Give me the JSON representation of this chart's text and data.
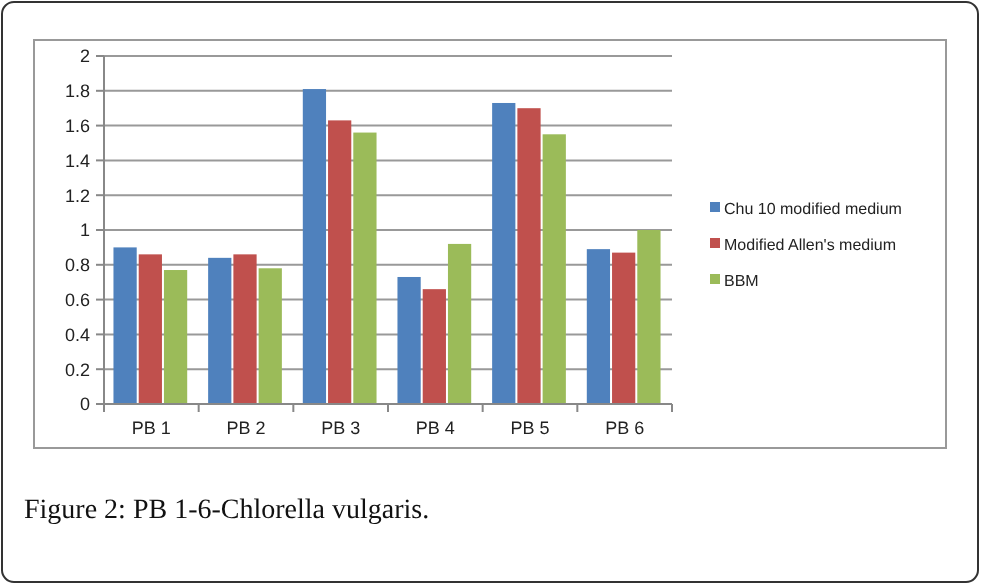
{
  "chart_data": {
    "type": "bar",
    "categories": [
      "PB 1",
      "PB 2",
      "PB 3",
      "PB 4",
      "PB 5",
      "PB 6"
    ],
    "series": [
      {
        "name": "Chu 10 modified medium",
        "color": "#4f81bd",
        "values": [
          0.9,
          0.84,
          1.81,
          0.73,
          1.73,
          0.89
        ]
      },
      {
        "name": "Modified Allen's medium",
        "color": "#c0504d",
        "values": [
          0.86,
          0.86,
          1.63,
          0.66,
          1.7,
          0.87
        ]
      },
      {
        "name": "BBM",
        "color": "#9bbb59",
        "values": [
          0.77,
          0.78,
          1.56,
          0.92,
          1.55,
          1.0
        ]
      }
    ],
    "ylim": [
      0,
      2
    ],
    "yticks": [
      0,
      0.2,
      0.4,
      0.6,
      0.8,
      {
        "value": 1,
        "label": "1"
      },
      1.2,
      1.4,
      1.6,
      1.8,
      2
    ],
    "grid": "y",
    "legend": "right",
    "annotations": [
      "Figure 2: PB 1-6-Chlorella vulgaris."
    ]
  }
}
